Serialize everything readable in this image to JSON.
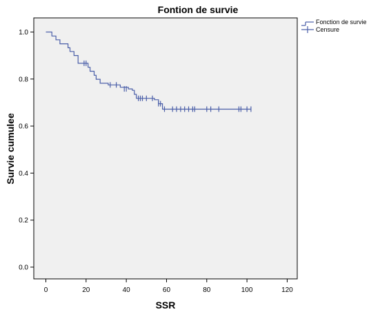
{
  "chart_data": {
    "type": "line",
    "title": "Fontion de survie",
    "xlabel": "SSR",
    "ylabel": "Survie cumulee",
    "xlim": [
      -6,
      125
    ],
    "ylim": [
      -0.05,
      1.06
    ],
    "x_ticks": [
      "0",
      "20",
      "40",
      "60",
      "80",
      "100",
      "120"
    ],
    "y_ticks": [
      "0.0",
      "0.2",
      "0.4",
      "0.6",
      "0.8",
      "1.0"
    ],
    "background": "#f0f0f0",
    "line_color": "#4a5ea8",
    "legend": {
      "position": "top-right",
      "entries": [
        "Fonction de survie",
        "Censure"
      ]
    },
    "series": [
      {
        "name": "Fonction de survie",
        "steps": [
          [
            0,
            1.0
          ],
          [
            3,
            0.983
          ],
          [
            5,
            0.967
          ],
          [
            7,
            0.95
          ],
          [
            11,
            0.933
          ],
          [
            12,
            0.917
          ],
          [
            14,
            0.9
          ],
          [
            16,
            0.867
          ],
          [
            21,
            0.85
          ],
          [
            22,
            0.833
          ],
          [
            24,
            0.816
          ],
          [
            25,
            0.799
          ],
          [
            27,
            0.782
          ],
          [
            31,
            0.775
          ],
          [
            37,
            0.765
          ],
          [
            41,
            0.758
          ],
          [
            43,
            0.752
          ],
          [
            44,
            0.735
          ],
          [
            45,
            0.718
          ],
          [
            54,
            0.712
          ],
          [
            56,
            0.695
          ],
          [
            58,
            0.672
          ]
        ],
        "end_x": 102
      }
    ],
    "censored": [
      {
        "x": 19,
        "y": 0.867
      },
      {
        "x": 20,
        "y": 0.867
      },
      {
        "x": 32,
        "y": 0.775
      },
      {
        "x": 35,
        "y": 0.775
      },
      {
        "x": 39,
        "y": 0.758
      },
      {
        "x": 40,
        "y": 0.758
      },
      {
        "x": 46,
        "y": 0.718
      },
      {
        "x": 47,
        "y": 0.718
      },
      {
        "x": 48,
        "y": 0.718
      },
      {
        "x": 50,
        "y": 0.718
      },
      {
        "x": 53,
        "y": 0.718
      },
      {
        "x": 56,
        "y": 0.695
      },
      {
        "x": 57,
        "y": 0.695
      },
      {
        "x": 59,
        "y": 0.672
      },
      {
        "x": 63,
        "y": 0.672
      },
      {
        "x": 65,
        "y": 0.672
      },
      {
        "x": 67,
        "y": 0.672
      },
      {
        "x": 69,
        "y": 0.672
      },
      {
        "x": 71,
        "y": 0.672
      },
      {
        "x": 73,
        "y": 0.672
      },
      {
        "x": 74,
        "y": 0.672
      },
      {
        "x": 80,
        "y": 0.672
      },
      {
        "x": 82,
        "y": 0.672
      },
      {
        "x": 86,
        "y": 0.672
      },
      {
        "x": 96,
        "y": 0.672
      },
      {
        "x": 97,
        "y": 0.672
      },
      {
        "x": 100,
        "y": 0.672
      },
      {
        "x": 102,
        "y": 0.672
      }
    ]
  }
}
